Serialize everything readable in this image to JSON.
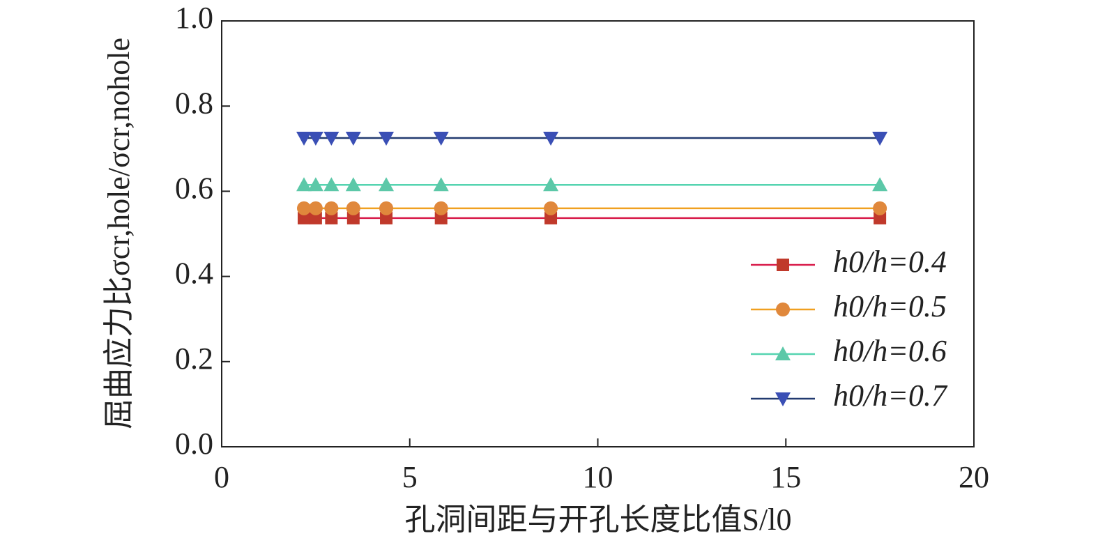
{
  "chart_data": {
    "type": "line",
    "x_label": "孔洞间距与开孔长度比值S/l0",
    "y_label": "屈曲应力比σcr,hole/σcr,nohole",
    "x": [
      2.1875,
      2.5,
      2.9167,
      3.5,
      4.375,
      5.8333,
      8.75,
      17.5
    ],
    "series": [
      {
        "name": "h0/h=0.4",
        "color": "#d81b4a",
        "marker_color": "#c0392b",
        "marker": "square",
        "values": [
          0.537,
          0.537,
          0.537,
          0.537,
          0.537,
          0.537,
          0.537,
          0.537
        ]
      },
      {
        "name": "h0/h=0.5",
        "color": "#f0a020",
        "marker_color": "#e0883c",
        "marker": "circle",
        "values": [
          0.56,
          0.56,
          0.56,
          0.56,
          0.56,
          0.56,
          0.56,
          0.56
        ]
      },
      {
        "name": "h0/h=0.6",
        "color": "#55d4b0",
        "marker_color": "#5cc8a8",
        "marker": "triangle-up",
        "values": [
          0.615,
          0.615,
          0.615,
          0.615,
          0.615,
          0.615,
          0.615,
          0.615
        ]
      },
      {
        "name": "h0/h=0.7",
        "color": "#223a70",
        "marker_color": "#3a4fb5",
        "marker": "triangle-down",
        "values": [
          0.725,
          0.725,
          0.725,
          0.725,
          0.725,
          0.725,
          0.725,
          0.725
        ]
      }
    ],
    "xlim": [
      0,
      20
    ],
    "xticks": [
      0,
      5,
      10,
      15,
      20
    ],
    "ylim": [
      0,
      1
    ],
    "yticks": [
      {
        "value": 0,
        "label": "0.0"
      },
      {
        "value": 0.2,
        "label": "0.2"
      },
      {
        "value": 0.4,
        "label": "0.4"
      },
      {
        "value": 0.6,
        "label": "0.6"
      },
      {
        "value": 0.8,
        "label": "0.8"
      },
      {
        "value": 1,
        "label": "1.0"
      }
    ],
    "legend": "lower right",
    "grid": false
  }
}
